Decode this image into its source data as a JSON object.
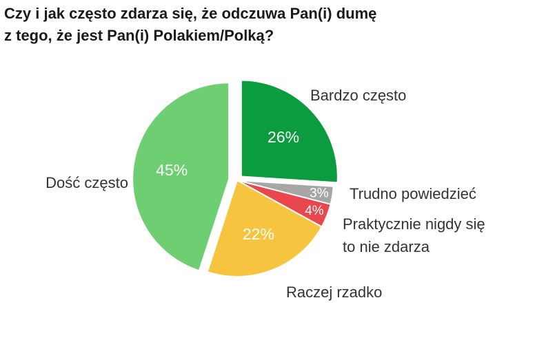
{
  "chart_data": {
    "type": "pie",
    "title": "Czy i jak często zdarza się, że odczuwa Pan(i) dumę\nz tego, że jest Pan(i) Polakiem/Polką?",
    "slices": [
      {
        "label": [
          "Bardzo często"
        ],
        "value": 26,
        "value_label": "26%",
        "color": "#0a9c3e"
      },
      {
        "label": [
          "Trudno powiedzieć"
        ],
        "value": 3,
        "value_label": "3%",
        "color": "#a6a6a6"
      },
      {
        "label": [
          "Praktycznie nigdy się",
          "to nie zdarza"
        ],
        "value": 4,
        "value_label": "4%",
        "color": "#e8484d"
      },
      {
        "label": [
          "Raczej rzadko"
        ],
        "value": 22,
        "value_label": "22%",
        "color": "#f6c43f"
      },
      {
        "label": [
          "Dość często"
        ],
        "value": 45,
        "value_label": "45%",
        "color": "#6ecf72"
      }
    ]
  }
}
